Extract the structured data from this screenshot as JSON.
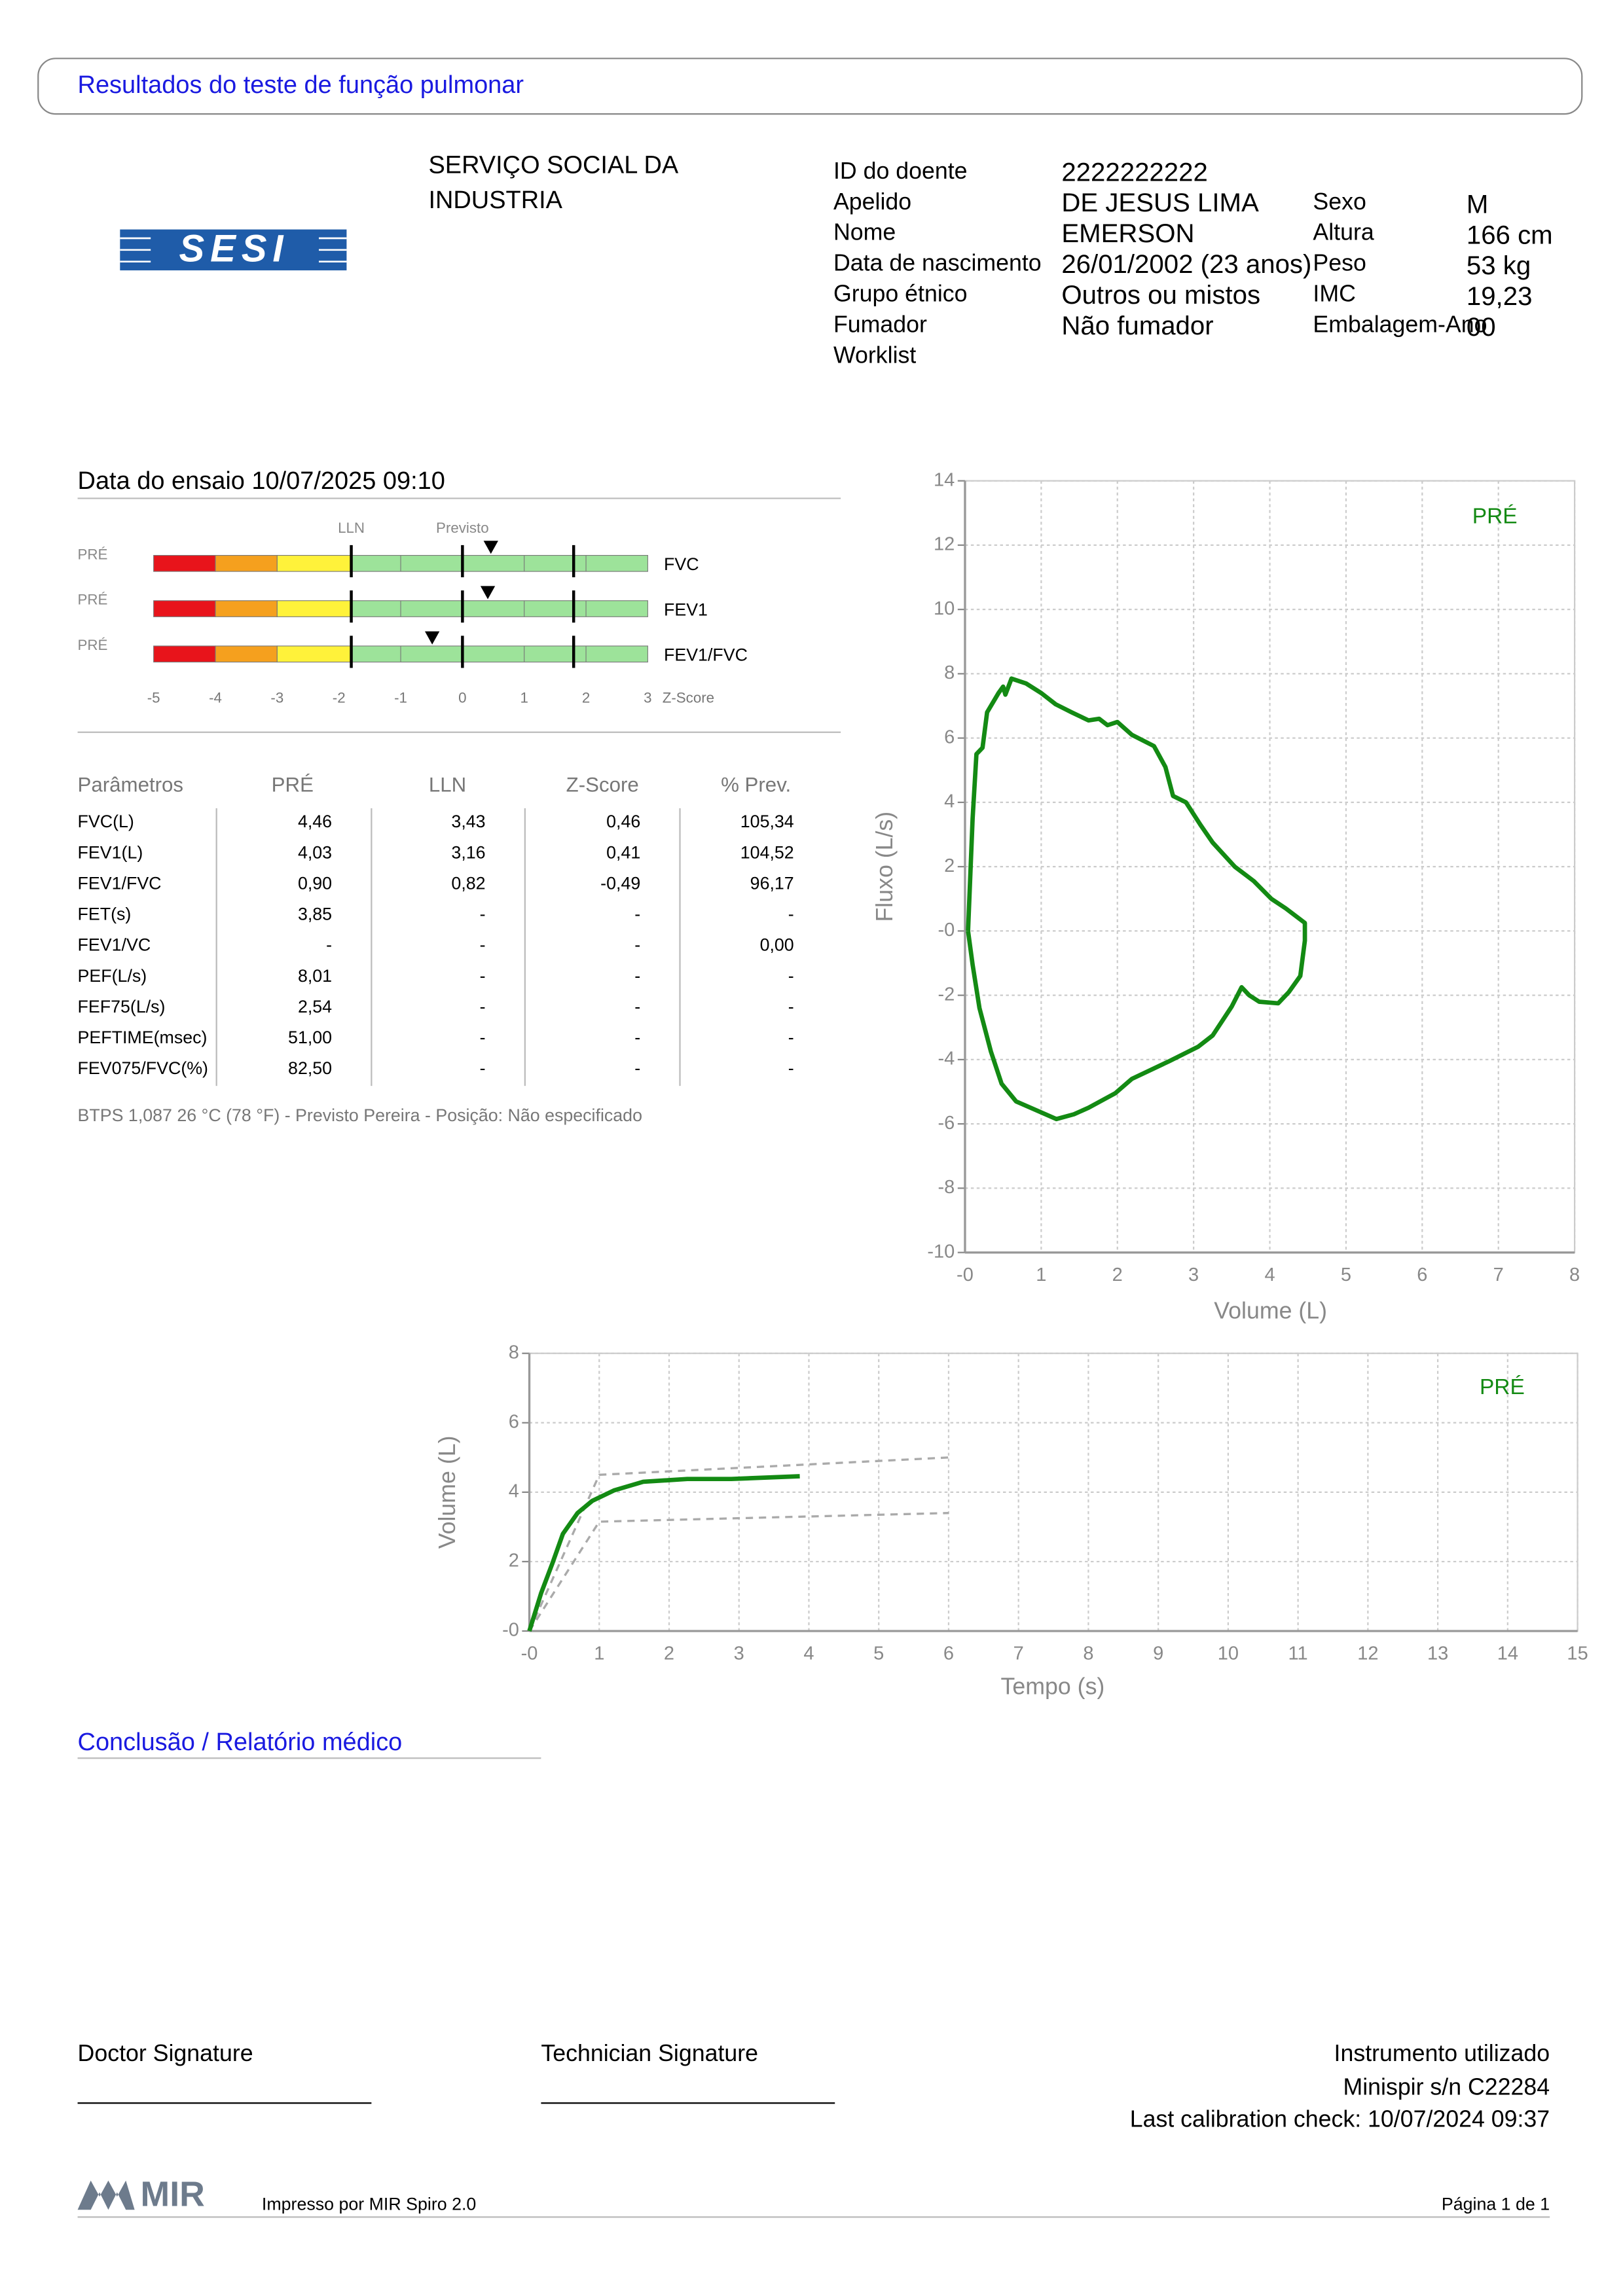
{
  "header": {
    "title": "Resultados do teste de função pulmonar"
  },
  "institution": {
    "logo_text": "SESI",
    "name_lines": [
      "SERVIÇO SOCIAL DA",
      "INDUSTRIA"
    ]
  },
  "patient": {
    "left": [
      {
        "label": "ID do doente",
        "value": "2222222222"
      },
      {
        "label": "Apelido",
        "value": "DE JESUS LIMA"
      },
      {
        "label": "Nome",
        "value": "EMERSON"
      },
      {
        "label": "Data de nascimento",
        "value": "26/01/2002 (23 anos)"
      },
      {
        "label": "Grupo étnico",
        "value": "Outros ou mistos"
      },
      {
        "label": "Fumador",
        "value": "Não fumador"
      },
      {
        "label": "Worklist"
      }
    ],
    "right": [
      {
        "label": "Sexo",
        "value": "M"
      },
      {
        "label": "Altura",
        "value": "166 cm"
      },
      {
        "label": "Peso",
        "value": "53 kg"
      },
      {
        "label": "IMC",
        "value": "19,23"
      },
      {
        "label": "Embalagem-Ano",
        "value": "00"
      }
    ]
  },
  "test": {
    "date_label": "Data do ensaio 10/07/2025 09:10"
  },
  "zscore": {
    "lln_label": "LLN",
    "pred_label": "Previsto",
    "axis_label": "Z-Score",
    "range": [
      -5,
      3
    ],
    "ticks": [
      -5,
      -4,
      -3,
      -2,
      -1,
      0,
      1,
      2,
      3
    ],
    "bands": [
      {
        "from": -5,
        "to": -4,
        "color": "#e8141b"
      },
      {
        "from": -4,
        "to": -3,
        "color": "#f5a01e"
      },
      {
        "from": -3,
        "to": -1.8,
        "color": "#fff23a"
      },
      {
        "from": -1.8,
        "to": 3,
        "color": "#9de39a"
      }
    ],
    "lines": [
      -1.8,
      0,
      1.8
    ],
    "rows": [
      {
        "phase": "PRÉ",
        "param": "FVC",
        "z": 0.46
      },
      {
        "phase": "PRÉ",
        "param": "FEV1",
        "z": 0.41
      },
      {
        "phase": "PRÉ",
        "param": "FEV1/FVC",
        "z": -0.49
      }
    ]
  },
  "parameters": {
    "columns": [
      "Parâmetros",
      "PRÉ",
      "LLN",
      "Z-Score",
      "% Prev."
    ],
    "rows": [
      [
        "FVC(L)",
        "4,46",
        "3,43",
        "0,46",
        "105,34"
      ],
      [
        "FEV1(L)",
        "4,03",
        "3,16",
        "0,41",
        "104,52"
      ],
      [
        "FEV1/FVC",
        "0,90",
        "0,82",
        "-0,49",
        "96,17"
      ],
      [
        "FET(s)",
        "3,85",
        "-",
        "-",
        "-"
      ],
      [
        "FEV1/VC",
        "-",
        "-",
        "-",
        "0,00"
      ],
      [
        "PEF(L/s)",
        "8,01",
        "-",
        "-",
        "-"
      ],
      [
        "FEF75(L/s)",
        "2,54",
        "-",
        "-",
        "-"
      ],
      [
        "PEFTIME(msec)",
        "51,00",
        "-",
        "-",
        "-"
      ],
      [
        "FEV075/FVC(%)",
        "82,50",
        "-",
        "-",
        "-"
      ]
    ],
    "footnote": "BTPS 1,087 26 °C (78 °F) - Previsto Pereira - Posição: Não especificado"
  },
  "chart_data": [
    {
      "type": "line",
      "x_label": "Volume (L)",
      "y_label": "Fluxo (L/s)",
      "grid": true,
      "legend": "upper right",
      "xlim": [
        0,
        8
      ],
      "ylim": [
        -10,
        14
      ],
      "xticks": [
        {
          "value": 0,
          "label": "-0"
        },
        1,
        2,
        3,
        4,
        5,
        6,
        7,
        8
      ],
      "yticks": [
        -10,
        -8,
        -6,
        -4,
        -2,
        {
          "value": 0,
          "label": "-0"
        },
        2,
        4,
        6,
        8,
        10,
        12,
        14
      ],
      "series": [
        {
          "name": "PRÉ",
          "color": "#138a13",
          "x": [
            0.04,
            0.1,
            0.15,
            0.23,
            0.29,
            0.44,
            0.5,
            0.53,
            0.61,
            0.8,
            1.0,
            1.19,
            1.4,
            1.62,
            1.76,
            1.87,
            2.0,
            2.19,
            2.48,
            2.63,
            2.73,
            2.9,
            3.09,
            3.25,
            3.54,
            3.79,
            4.02,
            4.21,
            4.46,
            4.46,
            4.4,
            4.25,
            4.11,
            3.86,
            3.73,
            3.63,
            3.5,
            3.25,
            3.06,
            2.68,
            2.19,
            1.97,
            1.62,
            1.43,
            1.2,
            0.96,
            0.67,
            0.48,
            0.34,
            0.19,
            0.1,
            0.04
          ],
          "values": [
            0,
            3.5,
            5.5,
            5.7,
            6.8,
            7.4,
            7.6,
            7.35,
            7.85,
            7.7,
            7.4,
            7.05,
            6.8,
            6.55,
            6.6,
            6.4,
            6.5,
            6.1,
            5.75,
            5.1,
            4.2,
            4.0,
            3.3,
            2.75,
            2.0,
            1.55,
            1.0,
            0.7,
            0.25,
            -0.3,
            -1.4,
            -1.9,
            -2.25,
            -2.2,
            -2.0,
            -1.75,
            -2.35,
            -3.25,
            -3.6,
            -4.05,
            -4.6,
            -5.05,
            -5.5,
            -5.7,
            -5.85,
            -5.6,
            -5.3,
            -4.75,
            -3.75,
            -2.4,
            -1.05,
            0
          ]
        }
      ]
    },
    {
      "type": "line",
      "x_label": "Tempo (s)",
      "y_label": "Volume (L)",
      "grid": true,
      "legend": "upper right",
      "xlim": [
        0,
        15
      ],
      "ylim": [
        0,
        8
      ],
      "xticks": [
        {
          "value": 0,
          "label": "-0"
        },
        1,
        2,
        3,
        4,
        5,
        6,
        7,
        8,
        9,
        10,
        11,
        12,
        13,
        14,
        15
      ],
      "yticks": [
        {
          "value": 0,
          "label": "-0"
        },
        2,
        4,
        6,
        8
      ],
      "series": [
        {
          "color": "#aaaaaa",
          "dashed": true,
          "x": [
            0,
            1,
            6
          ],
          "values": [
            0,
            4.5,
            5.0
          ]
        },
        {
          "color": "#aaaaaa",
          "dashed": true,
          "x": [
            0,
            1,
            6
          ],
          "values": [
            0,
            3.15,
            3.4
          ]
        },
        {
          "name": "PRÉ",
          "color": "#138a13",
          "x": [
            0,
            0.17,
            0.33,
            0.48,
            0.69,
            0.9,
            1.21,
            1.63,
            2.26,
            2.89,
            3.87
          ],
          "values": [
            0,
            1.1,
            1.95,
            2.8,
            3.4,
            3.75,
            4.05,
            4.3,
            4.38,
            4.38,
            4.46
          ]
        }
      ]
    }
  ],
  "conclusion": {
    "title": "Conclusão / Relatório médico"
  },
  "signatures": {
    "doctor": "Doctor Signature",
    "technician": "Technician Signature"
  },
  "instrument": {
    "lines": [
      "Instrumento utilizado",
      "Minispir s/n C22284",
      "Last calibration check: 10/07/2024 09:37"
    ]
  },
  "footer": {
    "logo_text": "MIR",
    "printed_by": "Impresso por MIR Spiro 2.0",
    "page": "Página 1 de 1"
  }
}
